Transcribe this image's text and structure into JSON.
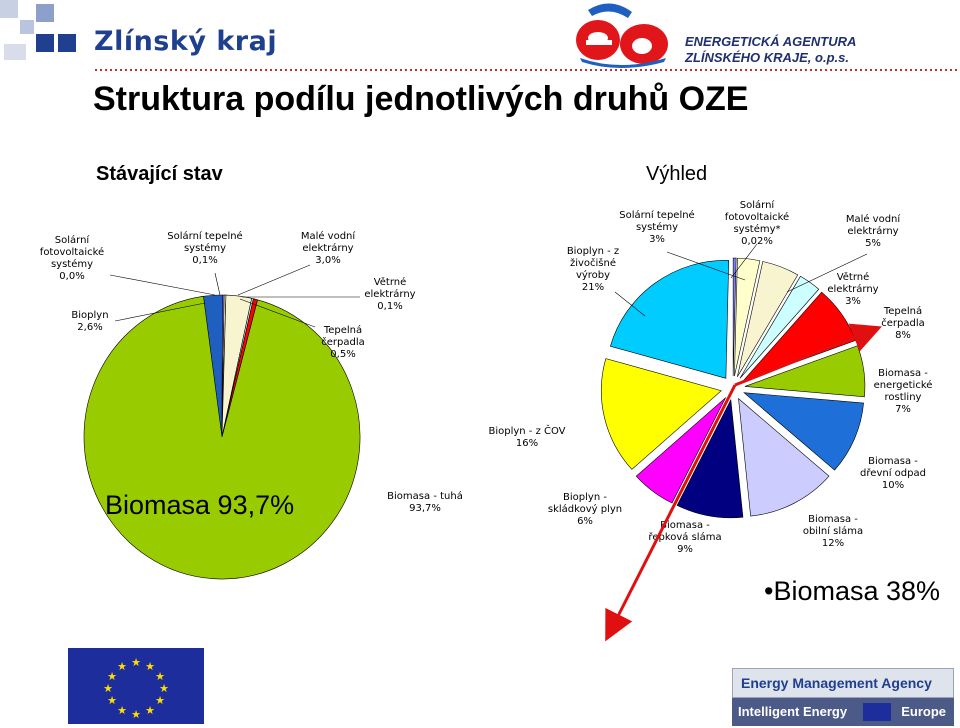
{
  "header": {
    "zlinsky_kraj": "Zlínský kraj",
    "agency_line1": "ENERGETICKÁ AGENTURA",
    "agency_line2": "ZLÍNSKÉHO KRAJE, o.p.s.",
    "ea_logo": "ea-logo"
  },
  "title": "Struktura podílu jednotlivých druhů OZE",
  "subtitle_left": "Stávající stav",
  "subtitle_right": "Výhled",
  "big_left": "Biomasa 93,7%",
  "big_right": "•Biomasa 38%",
  "footer": {
    "agency_top": "Energy Management Agency",
    "agency_ie": "Intelligent Energy",
    "agency_europe": "Europe"
  },
  "colors": {
    "brand_blue": "#1f3f8f",
    "arrow_red": "#e01010",
    "pie_green": "#99cc00"
  },
  "chart_data": [
    {
      "type": "pie",
      "title": "Stávající stav",
      "slices": [
        {
          "label": "Biomasa - tuhá\n93,7%",
          "value": 93.7,
          "color": "#99cc00"
        },
        {
          "label": "Bioplyn\n2,6%",
          "value": 2.6,
          "color": "#1f5fc0"
        },
        {
          "label": "Solární\nfotovoltaické\nsystémy\n0,0%",
          "value": 0.0,
          "color": "#8080ff"
        },
        {
          "label": "Solární tepelné\nsystémy\n0,1%",
          "value": 0.1,
          "color": "#ffffcc"
        },
        {
          "label": "Malé vodní\nelektrárny\n3,0%",
          "value": 3.0,
          "color": "#f8f4d0"
        },
        {
          "label": "Větrné\nelektrárny\n0,1%",
          "value": 0.1,
          "color": "#ccffff"
        },
        {
          "label": "Tepelná\nčerpadla\n0,5%",
          "value": 0.5,
          "color": "#ff0000"
        }
      ]
    },
    {
      "type": "pie",
      "title": "Výhled",
      "exploded": true,
      "slices": [
        {
          "label": "Solární\nfotovoltaické\nsystémy*\n0,02%",
          "value": 0.02,
          "color": "#8080ff"
        },
        {
          "label": "Solární tepelné\nsystémy\n3%",
          "value": 3,
          "color": "#ffffcc"
        },
        {
          "label": "Malé vodní\nelektrárny\n5%",
          "value": 5,
          "color": "#f8f4d0"
        },
        {
          "label": "Větrné\nelektrárny\n3%",
          "value": 3,
          "color": "#ccffff"
        },
        {
          "label": "Tepelná\nčerpadla\n8%",
          "value": 8,
          "color": "#ff0000"
        },
        {
          "label": "Biomasa -\nenergetické\nrostliny\n7%",
          "value": 7,
          "color": "#99cc00"
        },
        {
          "label": "Biomasa -\ndřevní odpad\n10%",
          "value": 10,
          "color": "#1f6fd8"
        },
        {
          "label": "Biomasa -\nobilní sláma\n12%",
          "value": 12,
          "color": "#ccccff"
        },
        {
          "label": "Biomasa -\nřepková sláma\n9%",
          "value": 9,
          "color": "#000080"
        },
        {
          "label": "Bioplyn -\nskládkový plyn\n6%",
          "value": 6,
          "color": "#ff00ff"
        },
        {
          "label": "Bioplyn - z ČOV\n16%",
          "value": 16,
          "color": "#ffff00"
        },
        {
          "label": "Bioplyn - z\nživočišné\nvýroby\n21%",
          "value": 21,
          "color": "#00ccff"
        }
      ]
    }
  ]
}
